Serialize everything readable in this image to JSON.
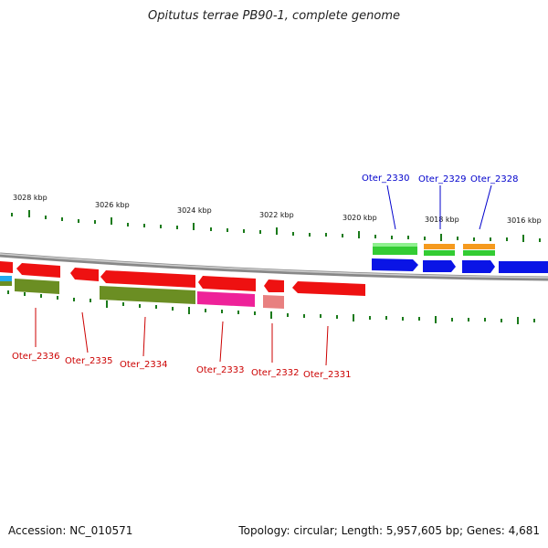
{
  "title": "Opitutus terrae PB90-1, complete genome",
  "footer": {
    "accession": "Accession: NC_010571",
    "summary": "Topology: circular; Length: 5,957,605 bp; Genes: 4,681"
  },
  "scale_labels": [
    "3028 kbp",
    "3026 kbp",
    "3024 kbp",
    "3022 kbp",
    "3020 kbp",
    "3018 kbp",
    "3016 kbp"
  ],
  "genes_forward": [
    {
      "name": "Oter_2330",
      "color": "#0000cc"
    },
    {
      "name": "Oter_2329",
      "color": "#0000cc"
    },
    {
      "name": "Oter_2328",
      "color": "#0000cc"
    }
  ],
  "genes_reverse": [
    {
      "name": "Oter_2336",
      "color": "#cc0000"
    },
    {
      "name": "Oter_2335",
      "color": "#cc0000"
    },
    {
      "name": "Oter_2334",
      "color": "#cc0000"
    },
    {
      "name": "Oter_2333",
      "color": "#cc0000"
    },
    {
      "name": "Oter_2332",
      "color": "#cc0000"
    },
    {
      "name": "Oter_2331",
      "color": "#cc0000"
    }
  ],
  "colors": {
    "forward_cds": "#0a14e6",
    "reverse_cds": "#ee1111",
    "backbone": "#8a8a8a",
    "ticks": "#1a7a1a",
    "cog_green": "#33cc33",
    "cog_orange": "#f59a1e",
    "cog_olive": "#6b8e23",
    "cog_magenta": "#ee2299",
    "cog_pink": "#e88080",
    "cog_cyan": "#22aaee"
  }
}
